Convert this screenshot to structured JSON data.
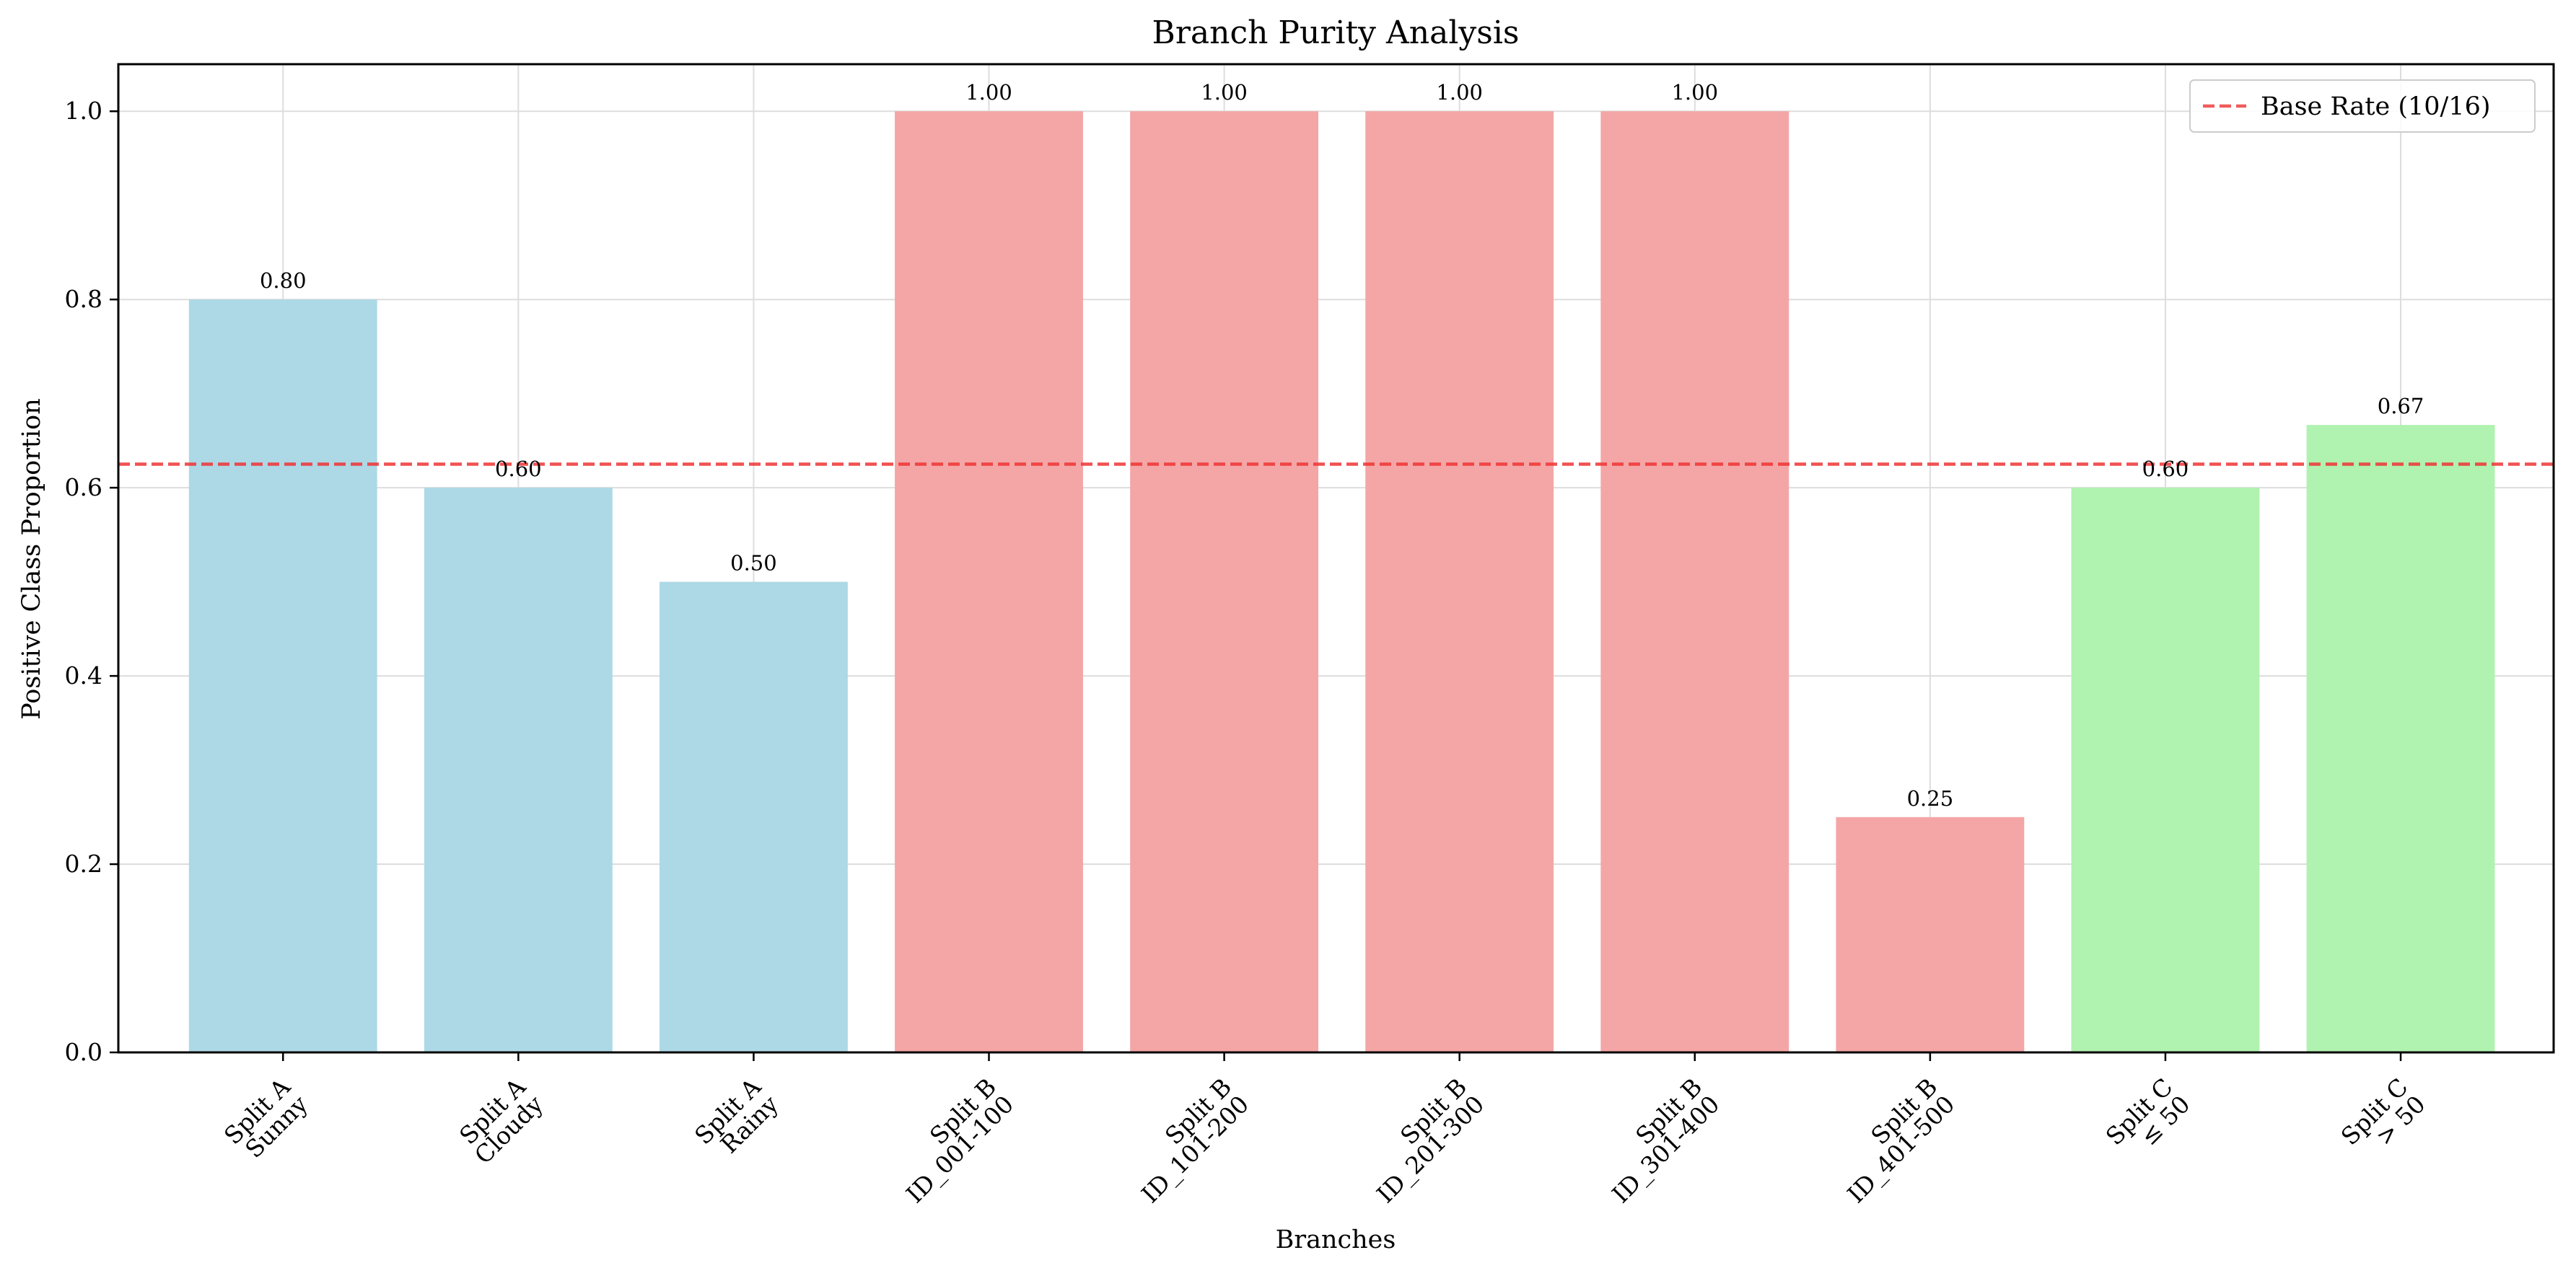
{
  "chart_data": {
    "type": "bar",
    "title": "Branch Purity Analysis",
    "xlabel": "Branches",
    "ylabel": "Positive Class Proportion",
    "ylim": [
      0,
      1.05
    ],
    "yticks": [
      "0.0",
      "0.2",
      "0.4",
      "0.6",
      "0.8",
      "1.0"
    ],
    "grid": true,
    "legend_position": "top-right",
    "categories": [
      {
        "line1": "Split A",
        "line2": "Sunny"
      },
      {
        "line1": "Split A",
        "line2": "Cloudy"
      },
      {
        "line1": "Split A",
        "line2": "Rainy"
      },
      {
        "line1": "Split B",
        "line2": "ID_001-100"
      },
      {
        "line1": "Split B",
        "line2": "ID_101-200"
      },
      {
        "line1": "Split B",
        "line2": "ID_201-300"
      },
      {
        "line1": "Split B",
        "line2": "ID_301-400"
      },
      {
        "line1": "Split B",
        "line2": "ID_401-500"
      },
      {
        "line1": "Split C",
        "line2": "≤ 50"
      },
      {
        "line1": "Split C",
        "line2": "> 50"
      }
    ],
    "values": [
      0.8,
      0.6,
      0.5,
      1.0,
      1.0,
      1.0,
      1.0,
      0.25,
      0.6,
      0.6667
    ],
    "value_labels": [
      "0.80",
      "0.60",
      "0.50",
      "1.00",
      "1.00",
      "1.00",
      "1.00",
      "0.25",
      "0.60",
      "0.67"
    ],
    "bar_colors": [
      "#add8e6",
      "#add8e6",
      "#add8e6",
      "#f4a6a6",
      "#f4a6a6",
      "#f4a6a6",
      "#f4a6a6",
      "#f4a6a6",
      "#b0f2b0",
      "#b0f2b0"
    ],
    "reference_line": {
      "label": "Base Rate (10/16)",
      "value": 0.625,
      "color": "#ee3333",
      "style": "dashed"
    }
  }
}
